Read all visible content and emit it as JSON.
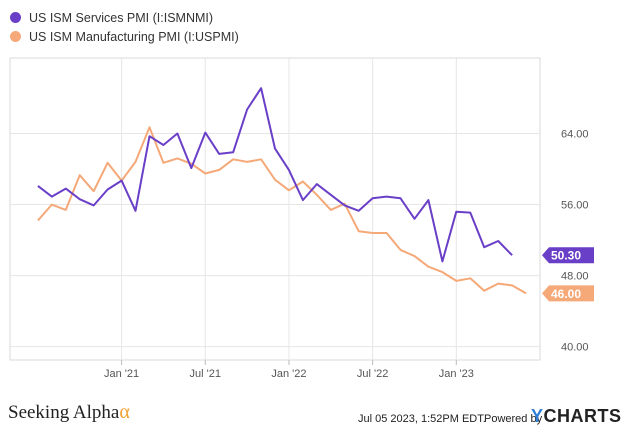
{
  "chart_data": {
    "type": "line",
    "series": [
      {
        "name": "US ISM Services PMI (I:ISMNMI)",
        "color": "#6a3fc8",
        "last_value_label": "50.30",
        "points": [
          [
            "2020-07",
            58.1
          ],
          [
            "2020-08",
            56.9
          ],
          [
            "2020-09",
            57.8
          ],
          [
            "2020-10",
            56.6
          ],
          [
            "2020-11",
            55.9
          ],
          [
            "2020-12",
            57.7
          ],
          [
            "2021-01",
            58.7
          ],
          [
            "2021-02",
            55.3
          ],
          [
            "2021-03",
            63.7
          ],
          [
            "2021-04",
            62.7
          ],
          [
            "2021-05",
            64.0
          ],
          [
            "2021-06",
            60.1
          ],
          [
            "2021-07",
            64.1
          ],
          [
            "2021-08",
            61.7
          ],
          [
            "2021-09",
            61.9
          ],
          [
            "2021-10",
            66.7
          ],
          [
            "2021-11",
            69.1
          ],
          [
            "2021-12",
            62.3
          ],
          [
            "2022-01",
            59.9
          ],
          [
            "2022-02",
            56.5
          ],
          [
            "2022-03",
            58.3
          ],
          [
            "2022-04",
            57.1
          ],
          [
            "2022-05",
            55.9
          ],
          [
            "2022-06",
            55.3
          ],
          [
            "2022-07",
            56.7
          ],
          [
            "2022-08",
            56.9
          ],
          [
            "2022-09",
            56.7
          ],
          [
            "2022-10",
            54.4
          ],
          [
            "2022-11",
            56.5
          ],
          [
            "2022-12",
            49.6
          ],
          [
            "2023-01",
            55.2
          ],
          [
            "2023-02",
            55.1
          ],
          [
            "2023-03",
            51.2
          ],
          [
            "2023-04",
            51.9
          ],
          [
            "2023-05",
            50.3
          ]
        ]
      },
      {
        "name": "US ISM Manufacturing PMI (I:USPMI)",
        "color": "#f5a878",
        "last_value_label": "46.00",
        "points": [
          [
            "2020-07",
            54.2
          ],
          [
            "2020-08",
            56.0
          ],
          [
            "2020-09",
            55.4
          ],
          [
            "2020-10",
            59.3
          ],
          [
            "2020-11",
            57.5
          ],
          [
            "2020-12",
            60.7
          ],
          [
            "2021-01",
            58.7
          ],
          [
            "2021-02",
            60.8
          ],
          [
            "2021-03",
            64.7
          ],
          [
            "2021-04",
            60.7
          ],
          [
            "2021-05",
            61.2
          ],
          [
            "2021-06",
            60.6
          ],
          [
            "2021-07",
            59.5
          ],
          [
            "2021-08",
            59.9
          ],
          [
            "2021-09",
            61.1
          ],
          [
            "2021-10",
            60.8
          ],
          [
            "2021-11",
            61.1
          ],
          [
            "2021-12",
            58.8
          ],
          [
            "2022-01",
            57.6
          ],
          [
            "2022-02",
            58.6
          ],
          [
            "2022-03",
            57.1
          ],
          [
            "2022-04",
            55.4
          ],
          [
            "2022-05",
            56.1
          ],
          [
            "2022-06",
            53.0
          ],
          [
            "2022-07",
            52.8
          ],
          [
            "2022-08",
            52.8
          ],
          [
            "2022-09",
            50.9
          ],
          [
            "2022-10",
            50.2
          ],
          [
            "2022-11",
            49.0
          ],
          [
            "2022-12",
            48.4
          ],
          [
            "2023-01",
            47.4
          ],
          [
            "2023-02",
            47.7
          ],
          [
            "2023-03",
            46.3
          ],
          [
            "2023-04",
            47.1
          ],
          [
            "2023-05",
            46.9
          ],
          [
            "2023-06",
            46.0
          ]
        ]
      }
    ],
    "x_range": [
      "2020-05",
      "2023-07"
    ],
    "x_ticks": [
      {
        "date": "2021-01",
        "label": "Jan '21"
      },
      {
        "date": "2021-07",
        "label": "Jul '21"
      },
      {
        "date": "2022-01",
        "label": "Jan '22"
      },
      {
        "date": "2022-07",
        "label": "Jul '22"
      },
      {
        "date": "2023-01",
        "label": "Jan '23"
      }
    ],
    "y_ticks": [
      {
        "value": 40,
        "label": "40.00"
      },
      {
        "value": 48,
        "label": "48.00"
      },
      {
        "value": 56,
        "label": "56.00"
      },
      {
        "value": 64,
        "label": "64.00"
      }
    ],
    "ylim": [
      38.5,
      72.5
    ],
    "y_axis_side": "right",
    "grid": true,
    "legend_position": "top-left"
  },
  "footer": {
    "brand": "Seeking Alpha",
    "brand_symbol": "α",
    "timestamp": "Jul 05 2023, 1:52PM EDT.",
    "powered_by": "Powered by",
    "ycharts_y": "Y",
    "ycharts_rest": "CHARTS"
  }
}
